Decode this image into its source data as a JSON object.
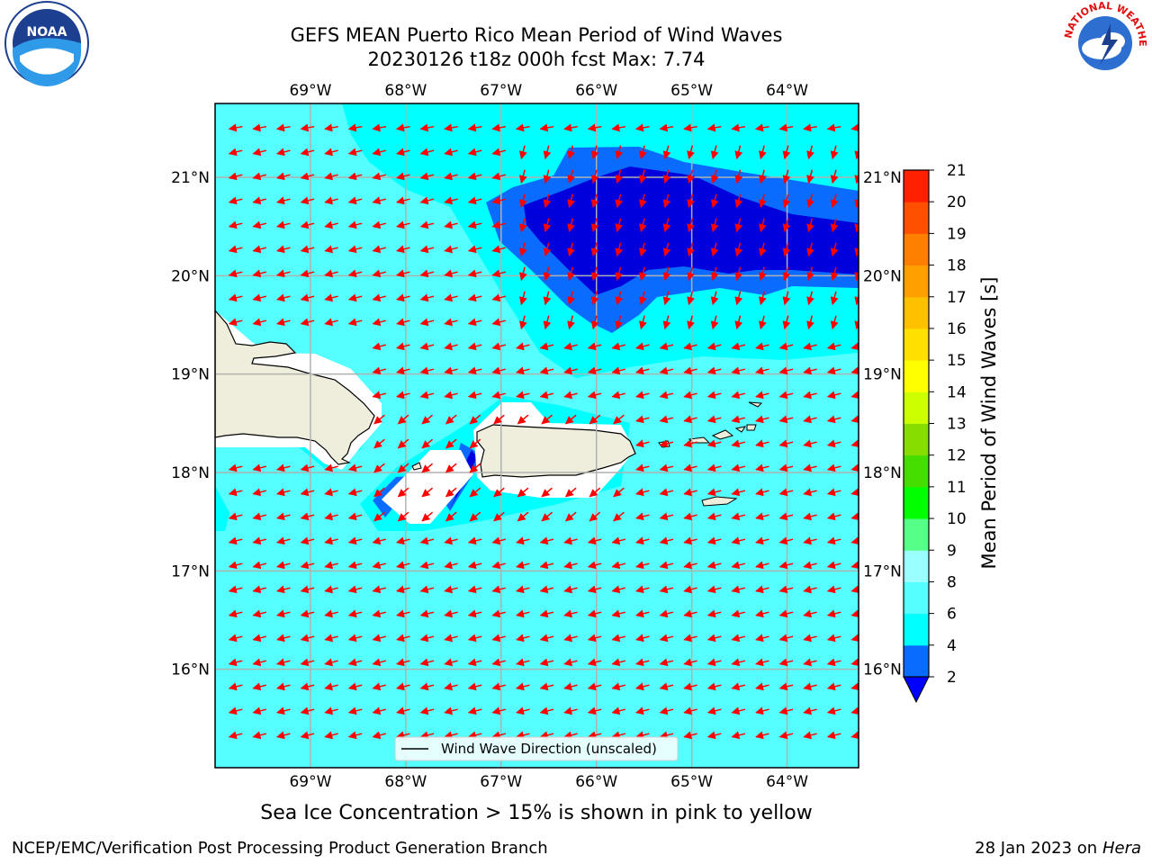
{
  "title": {
    "line1": "GEFS MEAN Puerto Rico Mean Period of Wind Waves",
    "line2": "20230126 t18z 000h fcst   Max: 7.74"
  },
  "map": {
    "lon_range": [
      -70.0,
      -63.25
    ],
    "lat_range": [
      15.0,
      21.75
    ],
    "lon_ticks": [
      "69°W",
      "68°W",
      "67°W",
      "66°W",
      "65°W",
      "64°W"
    ],
    "lat_ticks": [
      "21°N",
      "20°N",
      "19°N",
      "18°N",
      "17°N",
      "16°N"
    ],
    "grid": true,
    "places": [
      "Hispaniola",
      "Mona Island",
      "Puerto Rico",
      "Virgin Islands",
      "St. Croix"
    ]
  },
  "legend": {
    "label": "Wind Wave Direction (unscaled)",
    "placement": "lower-center"
  },
  "colorbar": {
    "label": "Mean Period of Wind Waves [s]",
    "ticks": [
      "2",
      "4",
      "6",
      "8",
      "9",
      "10",
      "11",
      "12",
      "13",
      "14",
      "15",
      "16",
      "17",
      "18",
      "19",
      "20",
      "21"
    ],
    "extend": "min",
    "extend_color": "#0000ff",
    "colors": [
      "#0a6cff",
      "#00ffff",
      "#55ffff",
      "#99ffff",
      "#55ff88",
      "#00ff00",
      "#44dd00",
      "#88dd00",
      "#ccff00",
      "#ffff00",
      "#ffe000",
      "#ffc000",
      "#ffa000",
      "#ff8000",
      "#ff5000",
      "#ff2000"
    ]
  },
  "colors": {
    "ocean": "#55ffff",
    "period_6_8": "#00ffff",
    "period_4_6": "#0a6cff",
    "period_2_4": "#0000dd",
    "land": "#efeedd",
    "arrow": "#ff0000"
  },
  "subtitle": "Sea Ice Concentration > 15% is shown in pink to yellow",
  "credit": "NCEP/EMC/Verification Post Processing Product Generation Branch",
  "stamp": {
    "date": "28 Jan 2023 on",
    "machine": "Hera"
  },
  "logos": {
    "left": "NOAA",
    "right": "NATIONAL WEATHER SERVICE"
  }
}
